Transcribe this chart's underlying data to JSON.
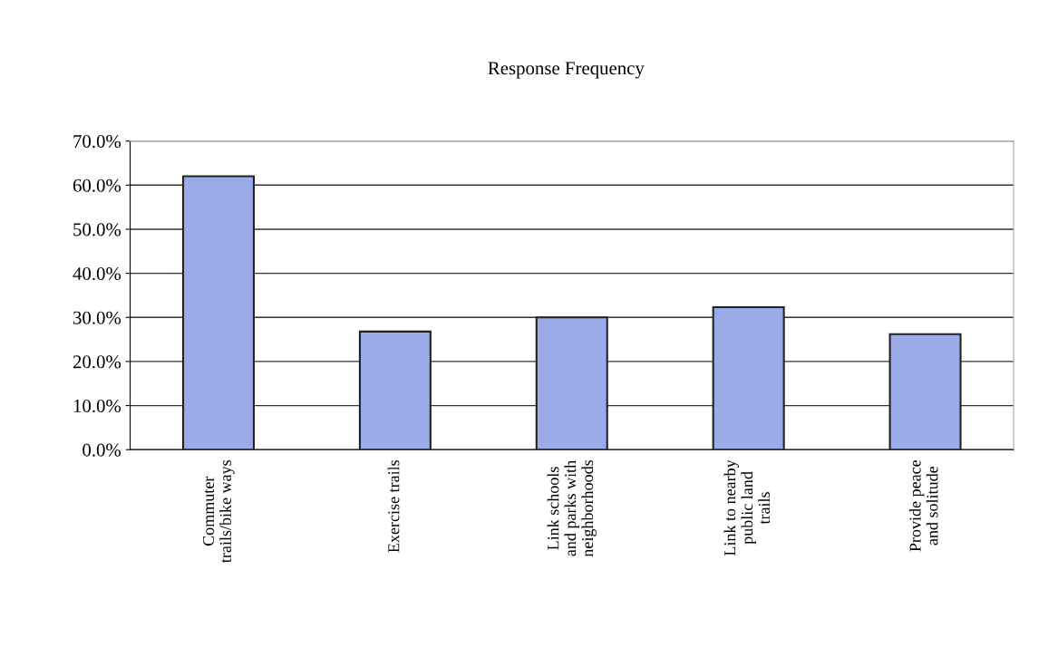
{
  "chart_data": {
    "type": "bar",
    "title": "Response Frequency",
    "categories": [
      "Commuter\ntrails/bike ways",
      "Exercise trails",
      "Link schools\nand parks with\nneighborhoods",
      "Link to nearby\npublic land\ntrails",
      "Provide peace\nand solitude"
    ],
    "values": [
      62.0,
      26.8,
      30.0,
      32.3,
      26.2
    ],
    "color": "#9aabe8",
    "ylim": [
      0,
      70
    ],
    "yticks": [
      {
        "value": 0,
        "label": "0.0%"
      },
      {
        "value": 10,
        "label": "10.0%"
      },
      {
        "value": 20,
        "label": "20.0%"
      },
      {
        "value": 30,
        "label": "30.0%"
      },
      {
        "value": 40,
        "label": "40.0%"
      },
      {
        "value": 50,
        "label": "50.0%"
      },
      {
        "value": 60,
        "label": "60.0%"
      },
      {
        "value": 70,
        "label": "70.0%"
      }
    ],
    "grid": "y",
    "legend": false
  }
}
